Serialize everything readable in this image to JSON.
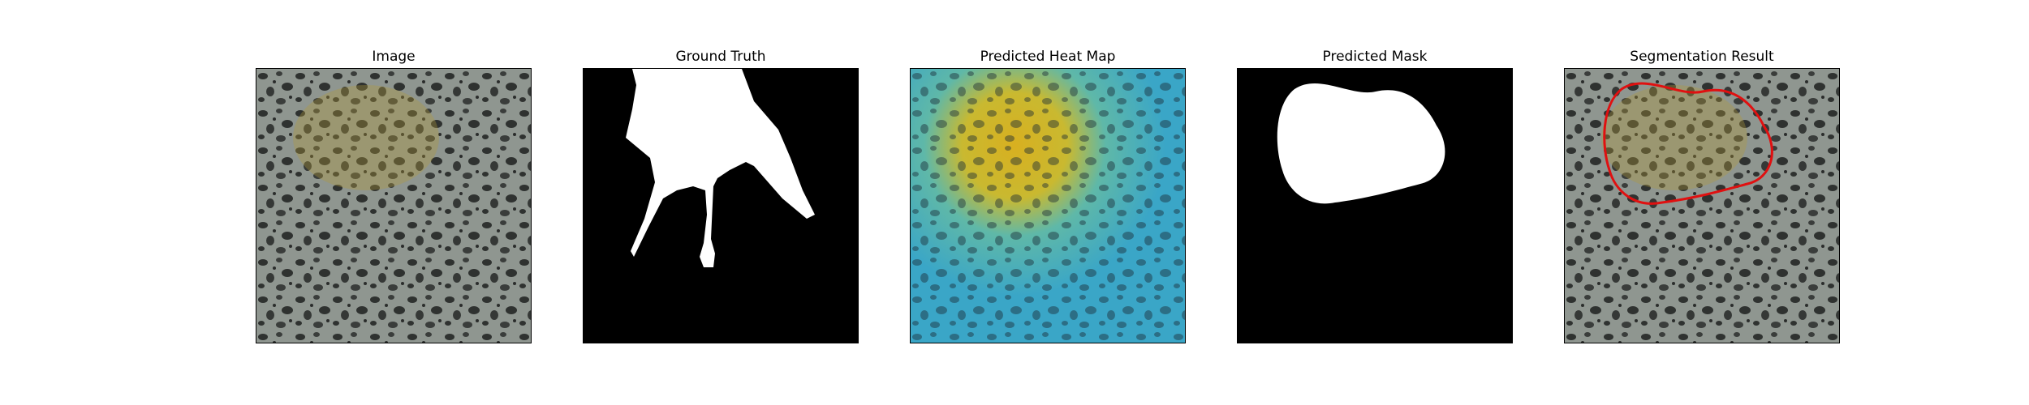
{
  "figure": {
    "panels": [
      {
        "title": "Image",
        "content": "speckled-texture"
      },
      {
        "title": "Ground Truth",
        "content": "binary-mask"
      },
      {
        "title": "Predicted Heat Map",
        "content": "heatmap-overlay"
      },
      {
        "title": "Predicted Mask",
        "content": "binary-mask"
      },
      {
        "title": "Segmentation Result",
        "content": "contour-overlay"
      }
    ],
    "colors": {
      "mask_background": "#000000",
      "mask_foreground": "#ffffff",
      "contour": "#e01010",
      "texture_base": "#8f9690",
      "texture_spots": "#2f3230",
      "heat_low": "#3aa6c7",
      "heat_high": "#d8b020"
    }
  }
}
